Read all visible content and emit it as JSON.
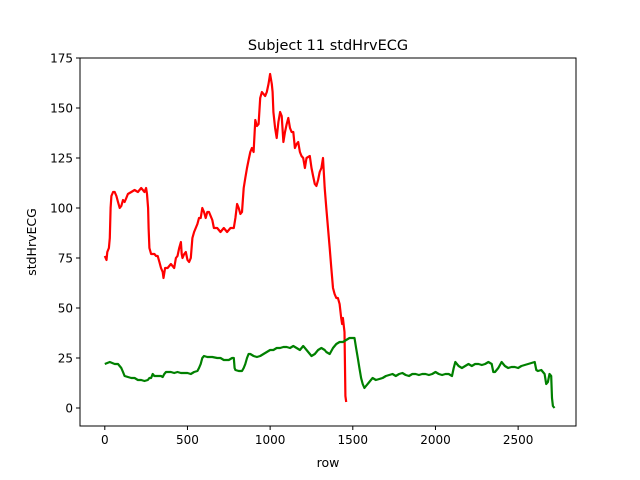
{
  "chart_data": {
    "type": "line",
    "title": "Subject 11 stdHrvECG",
    "xlabel": "row",
    "ylabel": "stdHrvECG",
    "xlim": [
      -150,
      2850
    ],
    "ylim": [
      -9,
      175
    ],
    "xticks": [
      0,
      500,
      1000,
      1500,
      2000,
      2500
    ],
    "yticks": [
      0,
      25,
      50,
      75,
      100,
      125,
      150,
      175
    ],
    "grid": false,
    "legend": "none",
    "series": [
      {
        "color": "#ff0000",
        "points": [
          [
            0,
            76
          ],
          [
            10,
            74
          ],
          [
            15,
            78
          ],
          [
            25,
            80
          ],
          [
            30,
            85
          ],
          [
            35,
            100
          ],
          [
            40,
            106
          ],
          [
            50,
            108
          ],
          [
            60,
            108
          ],
          [
            70,
            106
          ],
          [
            80,
            103
          ],
          [
            90,
            100
          ],
          [
            100,
            101
          ],
          [
            110,
            104
          ],
          [
            120,
            103
          ],
          [
            130,
            105
          ],
          [
            140,
            107
          ],
          [
            160,
            108
          ],
          [
            180,
            109
          ],
          [
            200,
            108
          ],
          [
            220,
            110
          ],
          [
            240,
            108
          ],
          [
            250,
            110
          ],
          [
            255,
            107
          ],
          [
            262,
            100
          ],
          [
            265,
            90
          ],
          [
            270,
            80
          ],
          [
            280,
            77
          ],
          [
            300,
            77
          ],
          [
            310,
            76
          ],
          [
            320,
            76
          ],
          [
            330,
            73
          ],
          [
            340,
            70
          ],
          [
            350,
            68
          ],
          [
            355,
            65
          ],
          [
            365,
            70
          ],
          [
            380,
            70
          ],
          [
            400,
            72
          ],
          [
            420,
            70
          ],
          [
            430,
            75
          ],
          [
            440,
            76
          ],
          [
            450,
            80
          ],
          [
            460,
            83
          ],
          [
            465,
            77
          ],
          [
            470,
            75
          ],
          [
            480,
            77
          ],
          [
            490,
            78
          ],
          [
            500,
            74
          ],
          [
            510,
            73
          ],
          [
            520,
            75
          ],
          [
            530,
            85
          ],
          [
            540,
            88
          ],
          [
            560,
            92
          ],
          [
            570,
            95
          ],
          [
            580,
            95
          ],
          [
            590,
            100
          ],
          [
            600,
            98
          ],
          [
            610,
            95
          ],
          [
            620,
            98
          ],
          [
            630,
            98
          ],
          [
            650,
            94
          ],
          [
            660,
            90
          ],
          [
            680,
            90
          ],
          [
            700,
            88
          ],
          [
            720,
            90
          ],
          [
            740,
            88
          ],
          [
            760,
            90
          ],
          [
            780,
            90
          ],
          [
            790,
            95
          ],
          [
            800,
            102
          ],
          [
            810,
            100
          ],
          [
            820,
            97
          ],
          [
            830,
            98
          ],
          [
            840,
            110
          ],
          [
            850,
            115
          ],
          [
            860,
            120
          ],
          [
            870,
            124
          ],
          [
            880,
            128
          ],
          [
            890,
            130
          ],
          [
            900,
            128
          ],
          [
            910,
            144
          ],
          [
            920,
            141
          ],
          [
            930,
            142
          ],
          [
            940,
            155
          ],
          [
            950,
            158
          ],
          [
            960,
            157
          ],
          [
            970,
            156
          ],
          [
            980,
            158
          ],
          [
            990,
            162
          ],
          [
            1000,
            167
          ],
          [
            1010,
            162
          ],
          [
            1015,
            158
          ],
          [
            1020,
            148
          ],
          [
            1030,
            140
          ],
          [
            1040,
            135
          ],
          [
            1050,
            143
          ],
          [
            1060,
            148
          ],
          [
            1070,
            146
          ],
          [
            1080,
            133
          ],
          [
            1090,
            138
          ],
          [
            1100,
            142
          ],
          [
            1110,
            145
          ],
          [
            1120,
            140
          ],
          [
            1130,
            138
          ],
          [
            1140,
            138
          ],
          [
            1150,
            130
          ],
          [
            1160,
            132
          ],
          [
            1170,
            133
          ],
          [
            1180,
            128
          ],
          [
            1190,
            126
          ],
          [
            1200,
            125
          ],
          [
            1210,
            120
          ],
          [
            1220,
            125
          ],
          [
            1240,
            126
          ],
          [
            1250,
            120
          ],
          [
            1260,
            116
          ],
          [
            1270,
            112
          ],
          [
            1280,
            111
          ],
          [
            1290,
            114
          ],
          [
            1300,
            118
          ],
          [
            1310,
            120
          ],
          [
            1320,
            125
          ],
          [
            1330,
            110
          ],
          [
            1340,
            100
          ],
          [
            1350,
            90
          ],
          [
            1360,
            80
          ],
          [
            1370,
            70
          ],
          [
            1380,
            60
          ],
          [
            1390,
            57
          ],
          [
            1400,
            55
          ],
          [
            1410,
            55
          ],
          [
            1420,
            52
          ],
          [
            1430,
            45
          ],
          [
            1435,
            42
          ],
          [
            1440,
            45
          ],
          [
            1450,
            38
          ],
          [
            1455,
            6
          ],
          [
            1460,
            3
          ]
        ]
      },
      {
        "color": "#008000",
        "points": [
          [
            0,
            22
          ],
          [
            30,
            23
          ],
          [
            60,
            22
          ],
          [
            80,
            22
          ],
          [
            100,
            20
          ],
          [
            110,
            18
          ],
          [
            120,
            16
          ],
          [
            140,
            15.5
          ],
          [
            160,
            15
          ],
          [
            180,
            15
          ],
          [
            200,
            14
          ],
          [
            220,
            14
          ],
          [
            240,
            13.5
          ],
          [
            260,
            14
          ],
          [
            270,
            15
          ],
          [
            280,
            15
          ],
          [
            290,
            17
          ],
          [
            300,
            16
          ],
          [
            310,
            16
          ],
          [
            320,
            16
          ],
          [
            340,
            16
          ],
          [
            350,
            15.5
          ],
          [
            360,
            17
          ],
          [
            370,
            18
          ],
          [
            400,
            18
          ],
          [
            420,
            17.5
          ],
          [
            440,
            18
          ],
          [
            460,
            17.5
          ],
          [
            480,
            17.5
          ],
          [
            500,
            17.5
          ],
          [
            520,
            17
          ],
          [
            540,
            18
          ],
          [
            560,
            18.5
          ],
          [
            570,
            20
          ],
          [
            580,
            22
          ],
          [
            590,
            25
          ],
          [
            600,
            26
          ],
          [
            620,
            25.5
          ],
          [
            650,
            25.5
          ],
          [
            680,
            25
          ],
          [
            700,
            25
          ],
          [
            720,
            24
          ],
          [
            750,
            24
          ],
          [
            770,
            25
          ],
          [
            780,
            25
          ],
          [
            785,
            20
          ],
          [
            790,
            19
          ],
          [
            810,
            18.5
          ],
          [
            830,
            18.5
          ],
          [
            840,
            20
          ],
          [
            850,
            22
          ],
          [
            860,
            25
          ],
          [
            870,
            27
          ],
          [
            880,
            27
          ],
          [
            900,
            26
          ],
          [
            920,
            25.5
          ],
          [
            940,
            26
          ],
          [
            960,
            27
          ],
          [
            980,
            28
          ],
          [
            1000,
            29
          ],
          [
            1020,
            29
          ],
          [
            1040,
            30
          ],
          [
            1060,
            30
          ],
          [
            1080,
            30.5
          ],
          [
            1100,
            30.5
          ],
          [
            1120,
            30
          ],
          [
            1140,
            31
          ],
          [
            1160,
            30
          ],
          [
            1180,
            29
          ],
          [
            1200,
            31
          ],
          [
            1210,
            30
          ],
          [
            1230,
            28
          ],
          [
            1250,
            26
          ],
          [
            1270,
            27
          ],
          [
            1290,
            29
          ],
          [
            1310,
            30
          ],
          [
            1330,
            29
          ],
          [
            1340,
            28
          ],
          [
            1360,
            27
          ],
          [
            1380,
            30
          ],
          [
            1400,
            32
          ],
          [
            1420,
            33
          ],
          [
            1440,
            33
          ],
          [
            1460,
            34
          ],
          [
            1480,
            35
          ],
          [
            1500,
            35
          ],
          [
            1510,
            35
          ],
          [
            1520,
            30
          ],
          [
            1530,
            25
          ],
          [
            1540,
            20
          ],
          [
            1550,
            15
          ],
          [
            1560,
            12
          ],
          [
            1570,
            10
          ],
          [
            1580,
            11
          ],
          [
            1600,
            13
          ],
          [
            1620,
            15
          ],
          [
            1640,
            14
          ],
          [
            1660,
            14.5
          ],
          [
            1680,
            15
          ],
          [
            1700,
            16
          ],
          [
            1720,
            16.5
          ],
          [
            1740,
            17
          ],
          [
            1760,
            16
          ],
          [
            1780,
            17
          ],
          [
            1800,
            17.5
          ],
          [
            1820,
            16.5
          ],
          [
            1840,
            16
          ],
          [
            1860,
            17
          ],
          [
            1880,
            17
          ],
          [
            1900,
            16.5
          ],
          [
            1920,
            17
          ],
          [
            1940,
            17
          ],
          [
            1960,
            16.5
          ],
          [
            1980,
            17
          ],
          [
            2000,
            18
          ],
          [
            2020,
            17
          ],
          [
            2040,
            16.5
          ],
          [
            2060,
            17
          ],
          [
            2080,
            17
          ],
          [
            2100,
            16
          ],
          [
            2110,
            20
          ],
          [
            2120,
            23
          ],
          [
            2140,
            21
          ],
          [
            2160,
            20
          ],
          [
            2180,
            21
          ],
          [
            2200,
            22
          ],
          [
            2220,
            21
          ],
          [
            2240,
            22
          ],
          [
            2260,
            22
          ],
          [
            2280,
            21.5
          ],
          [
            2300,
            22
          ],
          [
            2320,
            23
          ],
          [
            2340,
            22
          ],
          [
            2350,
            18
          ],
          [
            2360,
            18
          ],
          [
            2380,
            20
          ],
          [
            2400,
            23
          ],
          [
            2420,
            21
          ],
          [
            2440,
            20
          ],
          [
            2460,
            20.5
          ],
          [
            2480,
            20.5
          ],
          [
            2500,
            20
          ],
          [
            2520,
            21
          ],
          [
            2540,
            21.5
          ],
          [
            2560,
            22
          ],
          [
            2580,
            22.5
          ],
          [
            2600,
            23
          ],
          [
            2610,
            19
          ],
          [
            2620,
            18.5
          ],
          [
            2640,
            19
          ],
          [
            2660,
            17
          ],
          [
            2670,
            12
          ],
          [
            2680,
            13
          ],
          [
            2690,
            17
          ],
          [
            2700,
            16
          ],
          [
            2705,
            5
          ],
          [
            2710,
            1
          ],
          [
            2720,
            0
          ]
        ]
      }
    ]
  }
}
